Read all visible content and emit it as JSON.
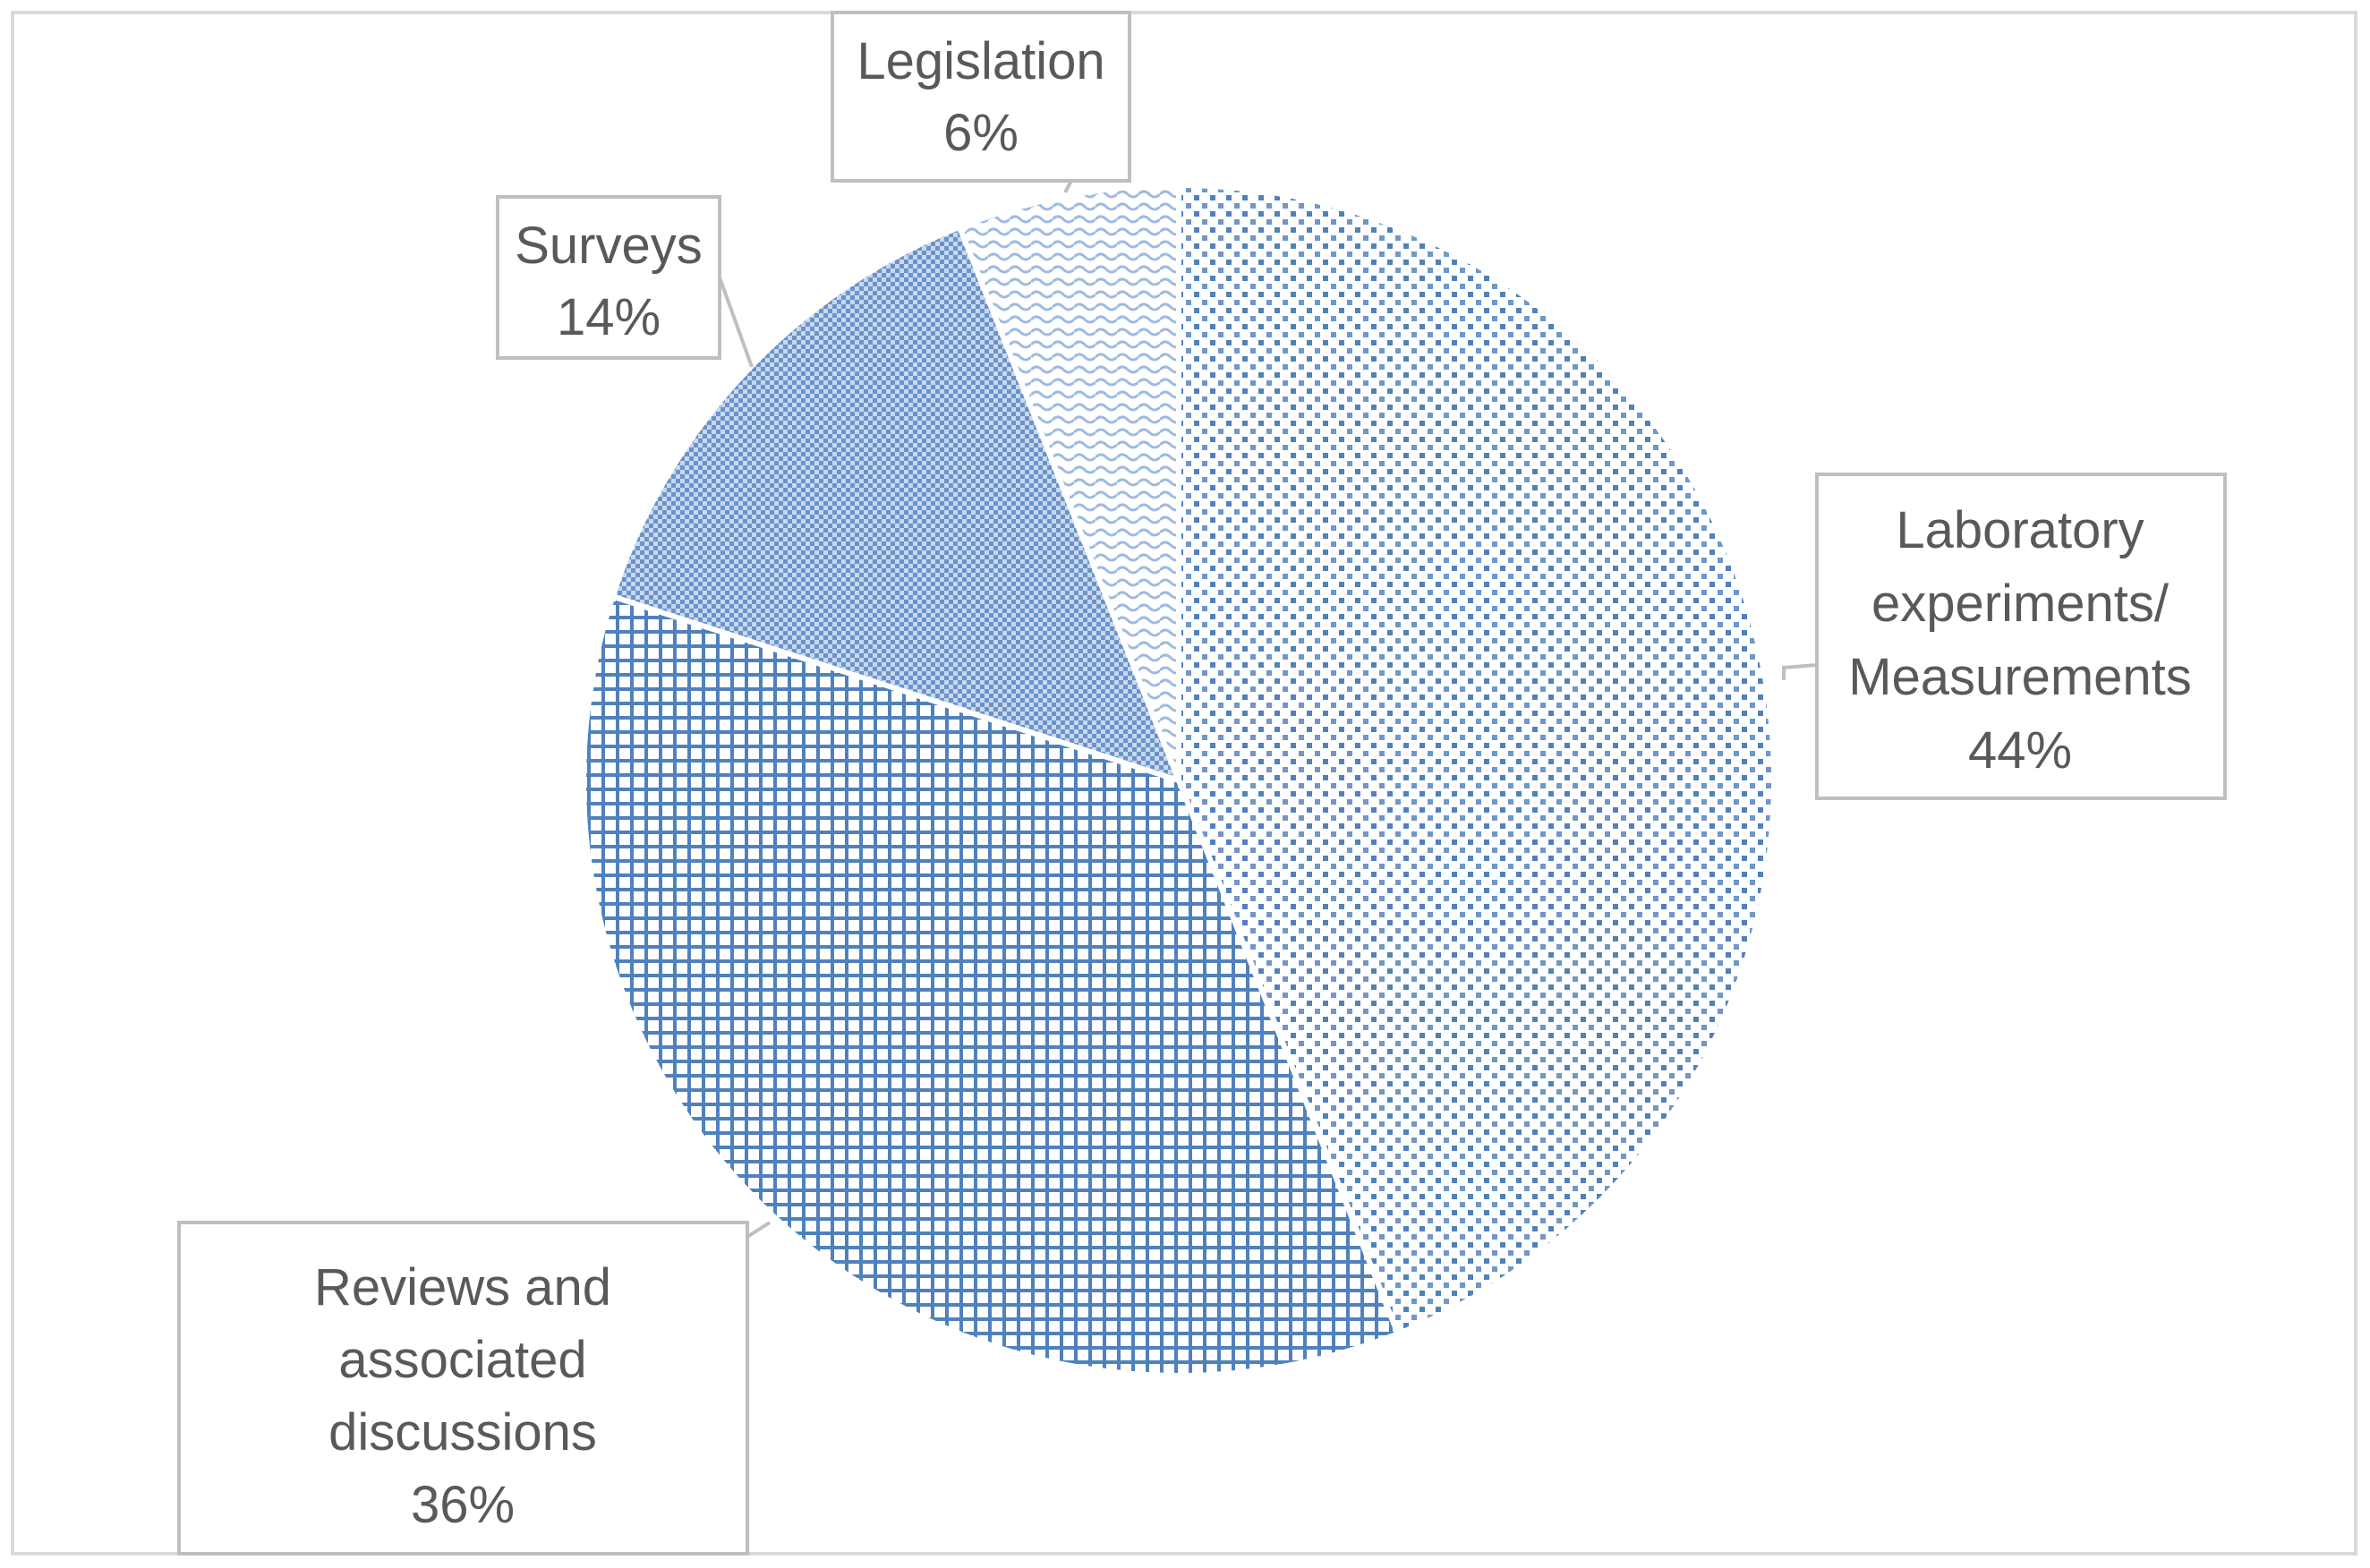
{
  "chart_data": {
    "type": "pie",
    "title": "",
    "categories": [
      "Laboratory experiments/ Measurements",
      "Reviews and associated discussions",
      "Surveys",
      "Legislation"
    ],
    "values": [
      44,
      36,
      14,
      6
    ],
    "value_suffix": "%",
    "labels": [
      {
        "lines": [
          "Laboratory",
          "experiments/",
          "Measurements"
        ],
        "value_text": "44%"
      },
      {
        "lines": [
          "Reviews and",
          "associated",
          "discussions"
        ],
        "value_text": "36%"
      },
      {
        "lines": [
          "Surveys"
        ],
        "value_text": "14%"
      },
      {
        "lines": [
          "Legislation"
        ],
        "value_text": "6%"
      }
    ],
    "fill_patterns": [
      "dotted-grid",
      "large-grid",
      "small-checker",
      "wave"
    ],
    "colors": {
      "series_blue": "#4f81bd",
      "series_light": "#9dbbe0",
      "border": "#bfbfbf",
      "label_text": "#595959"
    },
    "legend": "none",
    "start_angle_deg": 0,
    "direction": "clockwise"
  }
}
